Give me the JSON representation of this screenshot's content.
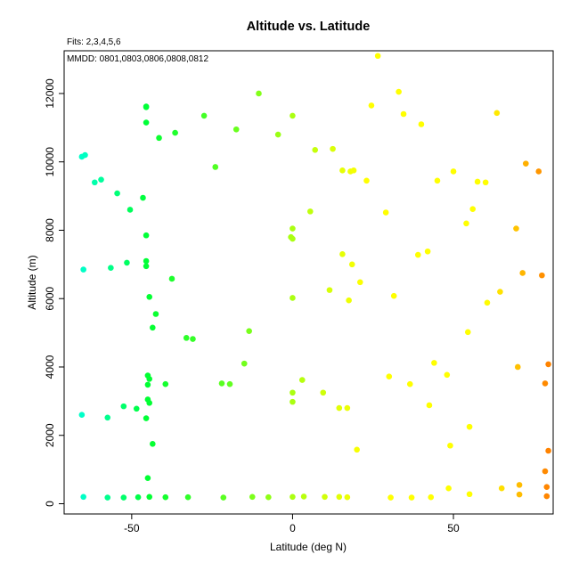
{
  "chart_data": {
    "type": "scatter",
    "title": "Altitude vs. Latitude",
    "annotations": [
      "Fits: 2,3,4,5,6",
      "MMDD: 0801,0803,0806,0808,0812"
    ],
    "xlabel": "Latitude (deg N)",
    "ylabel": "Altitude (m)",
    "xlim": [
      -71,
      81
    ],
    "ylim": [
      -300,
      13250
    ],
    "xticks": [
      -50,
      0,
      50
    ],
    "yticks": [
      0,
      2000,
      4000,
      6000,
      8000,
      10000,
      12000
    ],
    "grid": false,
    "colors": {
      "low": "#00ffcc",
      "mid": "#00ff33",
      "high": "#ffff00",
      "max": "#ff8000"
    },
    "points": [
      [
        -65.5,
        10150
      ],
      [
        -64.5,
        10200
      ],
      [
        -61.5,
        9400
      ],
      [
        -59.5,
        9480
      ],
      [
        -54.5,
        9080
      ],
      [
        -50.5,
        8600
      ],
      [
        -46.5,
        8950
      ],
      [
        -45.5,
        7850
      ],
      [
        -65,
        6850
      ],
      [
        -56.5,
        6900
      ],
      [
        -51.5,
        7050
      ],
      [
        -45.5,
        7100
      ],
      [
        -45.5,
        6950
      ],
      [
        -65.5,
        2600
      ],
      [
        -57.5,
        2520
      ],
      [
        -52.5,
        2850
      ],
      [
        -48.5,
        2780
      ],
      [
        -45.5,
        2500
      ],
      [
        -65,
        200
      ],
      [
        -57.5,
        180
      ],
      [
        -52.5,
        180
      ],
      [
        -48,
        190
      ],
      [
        -45.5,
        11600
      ],
      [
        -45.5,
        11620
      ],
      [
        -45.5,
        11150
      ],
      [
        -41.5,
        10700
      ],
      [
        -36.5,
        10850
      ],
      [
        -27.5,
        11350
      ],
      [
        -24,
        9850
      ],
      [
        -17.5,
        10950
      ],
      [
        -10.5,
        12000
      ],
      [
        -4.5,
        10800
      ],
      [
        0,
        11350
      ],
      [
        7,
        10350
      ],
      [
        12.5,
        10380
      ],
      [
        15.5,
        9750
      ],
      [
        18,
        9720
      ],
      [
        19,
        9750
      ],
      [
        0,
        8050
      ],
      [
        -0.5,
        7800
      ],
      [
        0,
        7750
      ],
      [
        5.5,
        8550
      ],
      [
        -37.5,
        6580
      ],
      [
        -44.5,
        6050
      ],
      [
        -42.5,
        5550
      ],
      [
        -43.5,
        5150
      ],
      [
        -33,
        4850
      ],
      [
        -31,
        4820
      ],
      [
        -13.5,
        5050
      ],
      [
        -15,
        4100
      ],
      [
        0,
        6020
      ],
      [
        11.5,
        6250
      ],
      [
        15.5,
        7300
      ],
      [
        18.5,
        7000
      ],
      [
        17.5,
        5950
      ],
      [
        -45,
        3750
      ],
      [
        -44.5,
        3650
      ],
      [
        -45,
        3480
      ],
      [
        -45,
        3050
      ],
      [
        -44.5,
        2950
      ],
      [
        -39.5,
        3500
      ],
      [
        -22,
        3520
      ],
      [
        -19.5,
        3500
      ],
      [
        0,
        3250
      ],
      [
        0,
        2980
      ],
      [
        3,
        3620
      ],
      [
        9.5,
        3250
      ],
      [
        14.5,
        2800
      ],
      [
        17,
        2800
      ],
      [
        -43.5,
        1750
      ],
      [
        -45,
        750
      ],
      [
        -44.5,
        200
      ],
      [
        -39.5,
        190
      ],
      [
        -32.5,
        190
      ],
      [
        -21.5,
        180
      ],
      [
        -12.5,
        200
      ],
      [
        -7.5,
        190
      ],
      [
        0,
        200
      ],
      [
        3.5,
        210
      ],
      [
        10,
        200
      ],
      [
        14.5,
        200
      ],
      [
        17,
        190
      ],
      [
        26.5,
        13100
      ],
      [
        24.5,
        11650
      ],
      [
        33,
        12050
      ],
      [
        34.5,
        11400
      ],
      [
        40,
        11100
      ],
      [
        23,
        9450
      ],
      [
        29,
        8520
      ],
      [
        45,
        9450
      ],
      [
        50,
        9720
      ],
      [
        54,
        8200
      ],
      [
        56,
        8620
      ],
      [
        57.5,
        9420
      ],
      [
        60,
        9400
      ],
      [
        21,
        6480
      ],
      [
        31.5,
        6080
      ],
      [
        39,
        7280
      ],
      [
        42,
        7380
      ],
      [
        60.5,
        5880
      ],
      [
        54.5,
        5020
      ],
      [
        30,
        3720
      ],
      [
        36.5,
        3500
      ],
      [
        42.5,
        2880
      ],
      [
        44,
        4120
      ],
      [
        48,
        3770
      ],
      [
        55,
        2250
      ],
      [
        49,
        1700
      ],
      [
        20,
        1580
      ],
      [
        30.5,
        180
      ],
      [
        37,
        180
      ],
      [
        43,
        190
      ],
      [
        48.5,
        450
      ],
      [
        55,
        280
      ],
      [
        63.5,
        11430
      ],
      [
        72.5,
        9950
      ],
      [
        76.5,
        9720
      ],
      [
        69.5,
        8050
      ],
      [
        64.5,
        6200
      ],
      [
        71.5,
        6750
      ],
      [
        77.5,
        6680
      ],
      [
        70,
        4000
      ],
      [
        78.5,
        3520
      ],
      [
        79.5,
        4080
      ],
      [
        79.5,
        1550
      ],
      [
        78.5,
        950
      ],
      [
        65,
        450
      ],
      [
        70.5,
        550
      ],
      [
        70.5,
        270
      ],
      [
        79,
        490
      ],
      [
        79,
        220
      ]
    ]
  }
}
